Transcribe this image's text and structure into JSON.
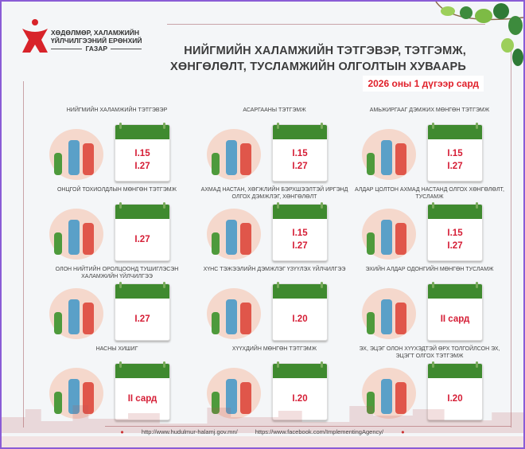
{
  "header": {
    "org_name": [
      "ХӨДӨЛМӨР, ХАЛАМЖИЙН",
      "ҮЙЛЧИЛГЭЭНИЙ ЕРӨНХИЙ",
      "ГАЗАР"
    ],
    "title_line1": "НИЙГМИЙН ХАЛАМЖИЙН ТЭТГЭВЭР, ТЭТГЭМЖ,",
    "title_line2": "ХӨНГӨЛӨЛТ, ТУСЛАМЖИЙН ОЛГОЛТЫН ХУВААРЬ",
    "subtitle": "2026 оны 1 дүгээр сард"
  },
  "colors": {
    "accent_red": "#d51d35",
    "calendar_green": "#3f8a2f",
    "frame": "#8a5cd6"
  },
  "cards": [
    {
      "title": "НИЙГМИЙН ХАЛАМЖИЙН ТЭТГЭВЭР",
      "dates": [
        "I.15",
        "I.27"
      ],
      "icon": "elderly-couple-illustration"
    },
    {
      "title": "АСАРГААНЫ ТЭТГЭМЖ",
      "dates": [
        "I.15",
        "I.27"
      ],
      "icon": "wheelchair-caregiver-illustration"
    },
    {
      "title": "АМЬЖИРГААГ ДЭМЖИХ МӨНГӨН ТЭТГЭМЖ",
      "dates": [
        "I.15",
        "I.27"
      ],
      "icon": "money-coins-illustration"
    },
    {
      "title": "ОНЦГОЙ ТОХИОЛДЛЫН МӨНГӨН ТЭТГЭМЖ",
      "dates": [
        "I.27"
      ],
      "icon": "hand-money-illustration"
    },
    {
      "title": "АХМАД НАСТАН, ХӨГЖЛИЙН БЭРХШЭЭЛТЭЙ ИРГЭНД ОЛГОХ ДЭМЖЛЭГ, ХӨНГӨЛӨЛТ",
      "dates": [
        "I.15",
        "I.27"
      ],
      "icon": "disability-support-illustration"
    },
    {
      "title": "АЛДАР ЦОЛТОН АХМАД НАСТАНД ОЛГОХ ХӨНГӨЛӨЛТ, ТУСЛАМЖ",
      "dates": [
        "I.15",
        "I.27"
      ],
      "icon": "honored-elders-illustration"
    },
    {
      "title": "ОЛОН НИЙТИЙН ОРОЛЦООНД ТУШИГЛЭСЭН ХАЛАМЖИЙН ҮЙЛЧИЛГЭЭ",
      "dates": [
        "I.27"
      ],
      "icon": "community-people-illustration"
    },
    {
      "title": "ХҮНС ТЭЖЭЭЛИЙН ДЭМЖЛЭГ ҮЗҮҮЛЭХ ҮЙЛЧИЛГЭЭ",
      "dates": [
        "I.20"
      ],
      "icon": "food-illustration"
    },
    {
      "title": "ЭХИЙН АЛДАР ОДОНГИЙН МӨНГӨН ТУСЛАМЖ",
      "dates": [
        "II сард"
      ],
      "icon": "medals-illustration"
    },
    {
      "title": "НАСНЫ ХИШИГ",
      "dates": [
        "II сард"
      ],
      "icon": "elderly-sofa-illustration"
    },
    {
      "title": "ХҮҮХДИЙН МӨНГӨН ТЭТГЭМЖ",
      "dates": [
        "I.20"
      ],
      "icon": "children-illustration"
    },
    {
      "title": "ЭХ, ЭЦЭГ ОЛОН ХҮҮХЭДТЭЙ ӨРХ ТОЛГОЙЛСОН ЭХ, ЭЦЭГТ ОЛГОХ ТЭТГЭМЖ",
      "dates": [
        "I.20"
      ],
      "icon": "family-illustration"
    }
  ],
  "footer": {
    "website": "http://www.hudulmur-halamj.gov.mn/",
    "facebook": "https://www.facebook.com/ImplementingAgency/"
  }
}
